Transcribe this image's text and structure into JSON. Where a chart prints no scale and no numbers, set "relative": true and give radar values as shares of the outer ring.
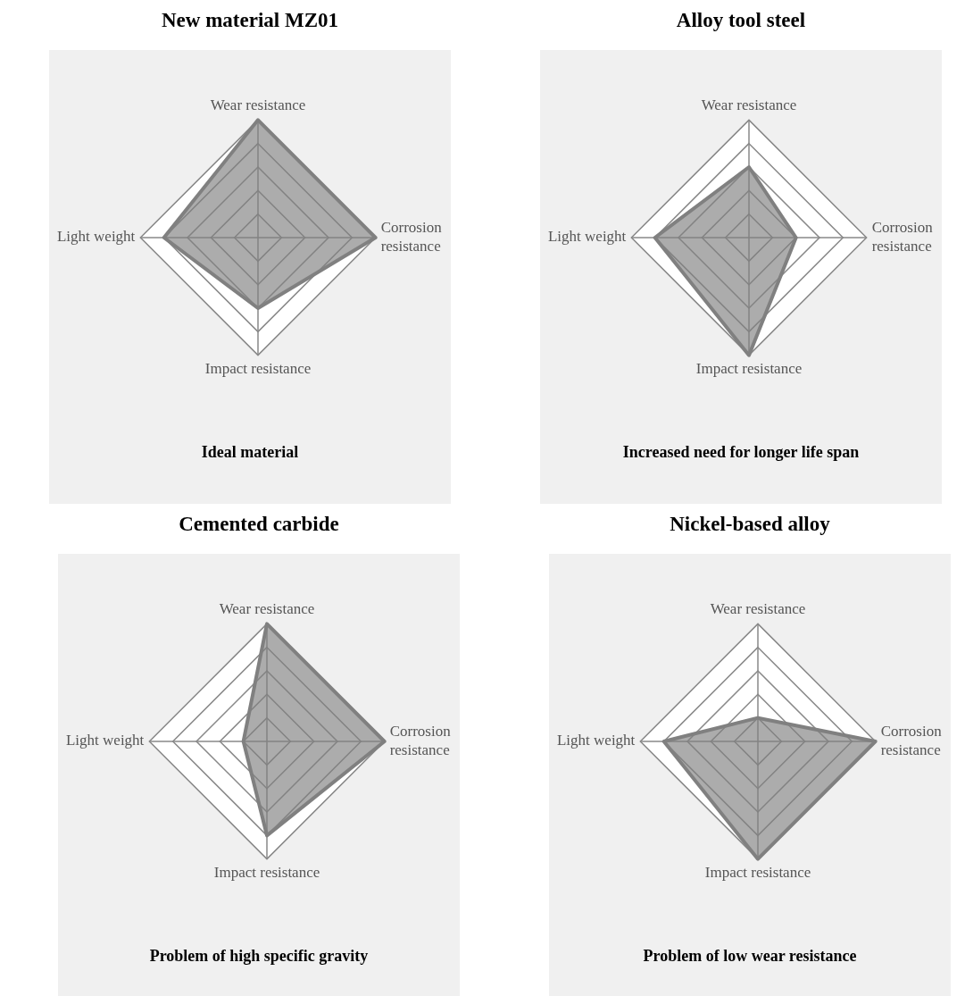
{
  "chart_data": [
    {
      "type": "radar",
      "title": "New material MZ01",
      "categories": [
        "Wear resistance",
        "Corrosion resistance",
        "Impact resistance",
        "Light weight"
      ],
      "series": [
        {
          "color": "#808080",
          "values": [
            1,
            1,
            0.6,
            0.8
          ]
        }
      ],
      "relative": true,
      "grid": true,
      "marker": "none",
      "annotations": [
        "Ideal material"
      ]
    },
    {
      "type": "radar",
      "title": "Alloy tool steel",
      "categories": [
        "Wear resistance",
        "Corrosion resistance",
        "Impact resistance",
        "Light weight"
      ],
      "series": [
        {
          "color": "#808080",
          "values": [
            0.6,
            0.4,
            1,
            0.8
          ]
        }
      ],
      "relative": true,
      "grid": true,
      "marker": "none",
      "annotations": [
        "Increased need for longer life span"
      ]
    },
    {
      "type": "radar",
      "title": "Cemented carbide",
      "categories": [
        "Wear resistance",
        "Corrosion resistance",
        "Impact resistance",
        "Light weight"
      ],
      "series": [
        {
          "color": "#808080",
          "values": [
            1,
            1,
            0.8,
            0.2
          ]
        }
      ],
      "relative": true,
      "grid": true,
      "marker": "none",
      "annotations": [
        "Problem of high specific gravity"
      ]
    },
    {
      "type": "radar",
      "title": "Nickel-based alloy",
      "categories": [
        "Wear resistance",
        "Corrosion resistance",
        "Impact resistance",
        "Light weight"
      ],
      "series": [
        {
          "color": "#808080",
          "values": [
            0.2,
            1,
            1,
            0.8
          ]
        }
      ],
      "relative": true,
      "grid": true,
      "marker": "none",
      "annotations": [
        "Problem of low wear resistance"
      ]
    }
  ]
}
